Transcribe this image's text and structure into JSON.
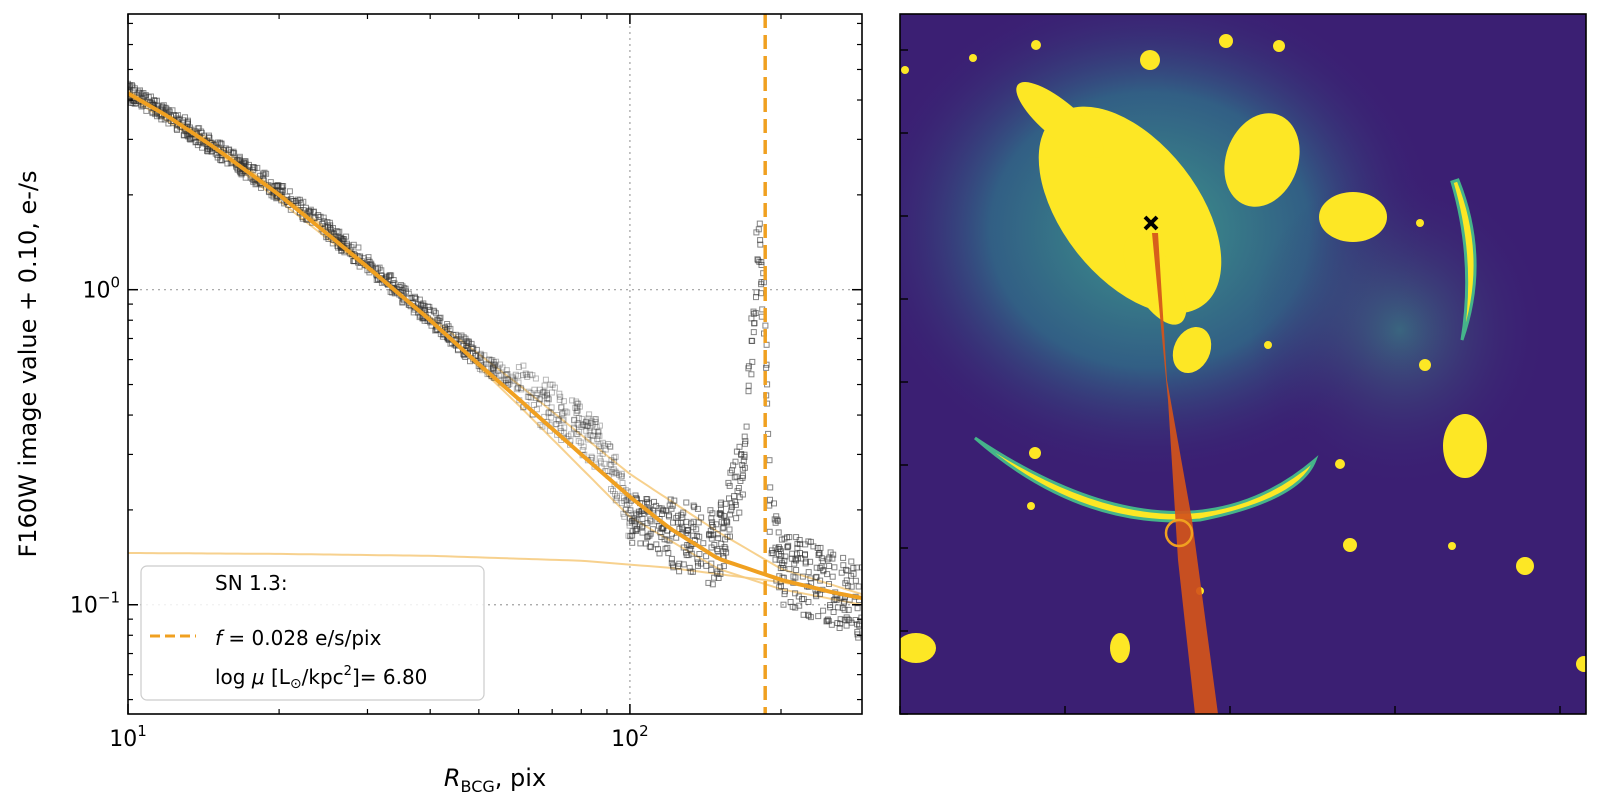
{
  "chart_data": [
    {
      "type": "scatter",
      "title": "",
      "xlabel_main": "R",
      "xlabel_sub": "BCG",
      "xlabel_tail": ", pix",
      "ylabel": "F160W image value + 0.10, e-/s",
      "xscale": "log",
      "yscale": "log",
      "xlim": [
        10,
        290
      ],
      "ylim": [
        0.045,
        7.5
      ],
      "xticks": [
        {
          "value": 10,
          "base": "10",
          "exp": "1"
        },
        {
          "value": 100,
          "base": "10",
          "exp": "2"
        }
      ],
      "yticks": [
        {
          "value": 1.0,
          "base": "10",
          "exp": "0"
        },
        {
          "value": 0.1,
          "base": "10",
          "exp": "−1"
        }
      ],
      "grid": "dotted at major ticks",
      "vline_x": 186,
      "legend": {
        "placement": "lower-left",
        "title": "SN 1.3:",
        "line1_var": "f",
        "line1_rest": " = 0.028 e/s/pix",
        "line2_pre": "log ",
        "line2_mu": "μ",
        "line2_mid": " [L",
        "line2_sun": "⊙",
        "line2_unit": "/kpc",
        "line2_exp": "2",
        "line2_end": "]= 6.80"
      },
      "model_curve": {
        "x": [
          10,
          12,
          15,
          20,
          25,
          30,
          40,
          50,
          60,
          80,
          100,
          120,
          150,
          200,
          250,
          290
        ],
        "y": [
          4.2,
          3.55,
          2.8,
          2.0,
          1.5,
          1.18,
          0.8,
          0.58,
          0.45,
          0.3,
          0.22,
          0.175,
          0.14,
          0.12,
          0.11,
          0.105
        ]
      },
      "faint_curves": [
        {
          "x": [
            10,
            20,
            40,
            80,
            120,
            200,
            290
          ],
          "y": [
            0.146,
            0.145,
            0.143,
            0.138,
            0.131,
            0.118,
            0.106
          ]
        },
        {
          "x": [
            10,
            15,
            25,
            40,
            60,
            100,
            150,
            200,
            290
          ],
          "y": [
            4.3,
            2.9,
            1.55,
            0.8,
            0.43,
            0.19,
            0.13,
            0.112,
            0.1
          ]
        },
        {
          "x": [
            10,
            15,
            25,
            40,
            60,
            100,
            150,
            200,
            290
          ],
          "y": [
            4.1,
            2.75,
            1.45,
            0.82,
            0.5,
            0.26,
            0.17,
            0.13,
            0.108
          ]
        }
      ],
      "data_profile": {
        "x": [
          10,
          12,
          15,
          20,
          25,
          30,
          40,
          50,
          60,
          70,
          80,
          90,
          100,
          120,
          150,
          170,
          180,
          186,
          190,
          200,
          230,
          260,
          290
        ],
        "y": [
          4.25,
          3.6,
          2.8,
          2.05,
          1.55,
          1.2,
          0.82,
          0.6,
          0.5,
          0.42,
          0.36,
          0.3,
          0.19,
          0.17,
          0.15,
          0.3,
          1.5,
          0.8,
          0.2,
          0.13,
          0.12,
          0.11,
          0.1
        ]
      }
    },
    {
      "type": "image",
      "colormap": "viridis",
      "marker_bcg": "x",
      "marker_sn": "circle",
      "colors": {
        "background": "#3b1f73",
        "halo": "#2b8a8a",
        "glow": "#45b48a",
        "bright": "#fde725",
        "mask": "#d4541a",
        "marker": "#f0a020"
      }
    }
  ],
  "colors": {
    "orange": "#f0a020",
    "orange_light": "#f6c97a",
    "data_points": "#333333",
    "grid": "#a0a0a0"
  }
}
